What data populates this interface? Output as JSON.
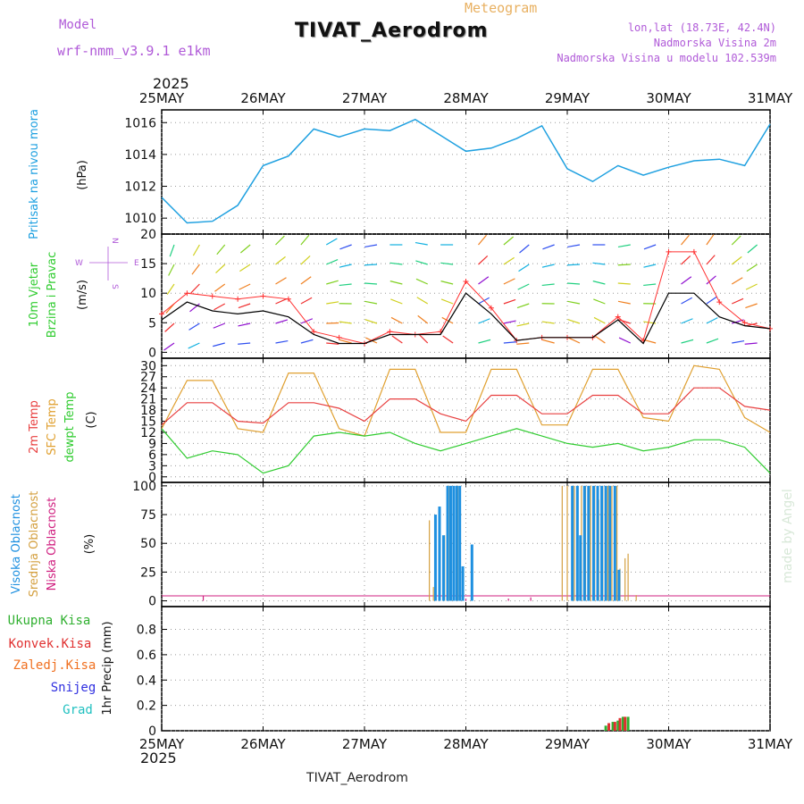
{
  "header": {
    "model_label": "Model",
    "model_name": "wrf-nmm_v3.9.1  e1km",
    "product": "Meteogram",
    "station": "TIVAT_Aerodrom",
    "location": "lon,lat (18.73E, 42.4N)",
    "elevation": "Nadmorska Visina 2m",
    "model_elevation": "Nadmorska Visina u modelu 102.539m",
    "footer_station": "TIVAT_Aerodrom",
    "credit": "made by Angel",
    "year_top": "2025",
    "year_bottom": "2025"
  },
  "colors": {
    "pressure": "#1ea0e0",
    "speed": "#000000",
    "gust": "#ff3030",
    "t2m": "#e84040",
    "sfc": "#e0a030",
    "dew": "#30cc30",
    "high_cloud": "#1e90e0",
    "mid_cloud": "#d4a040",
    "low_cloud": "#d02080",
    "total_precip": "#30b030",
    "conv_precip": "#e03030",
    "frozen": "#f07020",
    "snow": "#3030e0",
    "hail": "#20c0c0",
    "grid": "#999999"
  },
  "time_axis": {
    "ticks": [
      "25MAY",
      "26MAY",
      "27MAY",
      "28MAY",
      "29MAY",
      "30MAY",
      "31MAY"
    ]
  },
  "panels": {
    "pressure": {
      "label_main": "Pritisak na nivou mora",
      "unit": "(hPa)"
    },
    "wind": {
      "label_1": "10m Vjetar",
      "label_2": "Brzina i Pravac",
      "unit": "(m/s)",
      "compass_n": "N",
      "compass_w": "W",
      "compass_e": "E",
      "compass_s": "S"
    },
    "temp": {
      "label_1": "2m Temp",
      "label_2": "SFC Temp",
      "label_3": "dewpt Temp",
      "unit": "(C)"
    },
    "cloud": {
      "label_1": "Visoka Oblacnost",
      "label_2": "Srednja Oblacnost",
      "label_3": "Niska Oblacnost",
      "unit": "(%)"
    },
    "precip": {
      "label_1": "Ukupna Kisa",
      "label_2": "Konvek.Kisa",
      "label_3": "Zaledj.Kisa",
      "label_4": "Snijeg",
      "label_5": "Grad",
      "unit": "1hr Precip (mm)"
    }
  },
  "chart_data": [
    {
      "type": "line",
      "name": "pressure",
      "x_days": [
        0,
        0.25,
        0.5,
        0.75,
        1,
        1.25,
        1.5,
        1.75,
        2,
        2.25,
        2.5,
        2.75,
        3,
        3.25,
        3.5,
        3.75,
        4,
        4.25,
        4.5,
        4.75,
        5,
        5.25,
        5.5,
        5.75,
        6
      ],
      "series": [
        {
          "values": [
            1011.3,
            1009.7,
            1009.8,
            1010.8,
            1013.3,
            1013.9,
            1015.6,
            1015.1,
            1015.6,
            1015.5,
            1016.2,
            1015.2,
            1014.2,
            1014.4,
            1015.0,
            1015.8,
            1013.1,
            1012.3,
            1013.3,
            1012.7,
            1013.2,
            1013.6,
            1013.7,
            1013.3,
            1015.9
          ]
        }
      ],
      "ylabel": "(hPa)",
      "yticks": [
        1010,
        1012,
        1014,
        1016
      ],
      "ylim": [
        1009.0,
        1016.8
      ]
    },
    {
      "type": "line",
      "name": "wind10m",
      "x_days": [
        0,
        0.25,
        0.5,
        0.75,
        1,
        1.25,
        1.5,
        1.75,
        2,
        2.25,
        2.5,
        2.75,
        3,
        3.25,
        3.5,
        3.75,
        4,
        4.25,
        4.5,
        4.75,
        5,
        5.25,
        5.5,
        5.75,
        6
      ],
      "series": [
        {
          "values": [
            5.5,
            8.5,
            7.0,
            6.5,
            7.0,
            6.0,
            3.0,
            1.5,
            1.5,
            3.0,
            3.0,
            3.0,
            10.0,
            6.5,
            2.0,
            2.5,
            2.5,
            2.5,
            5.5,
            1.5,
            10.0,
            10.0,
            6.0,
            4.5,
            4.0
          ]
        },
        {
          "values": [
            6.5,
            10.0,
            9.5,
            9.0,
            9.5,
            9.0,
            3.5,
            2.5,
            1.5,
            3.5,
            3.0,
            3.5,
            12.0,
            7.5,
            2.0,
            2.5,
            2.5,
            2.5,
            6.0,
            2.0,
            17.0,
            17.0,
            8.5,
            5.0,
            4.0
          ]
        }
      ],
      "ylabel": "(m/s)",
      "yticks": [
        0,
        5,
        10,
        15,
        20
      ],
      "ylim": [
        -1,
        20
      ]
    },
    {
      "type": "line",
      "name": "temperature",
      "x_days": [
        0,
        0.25,
        0.5,
        0.75,
        1,
        1.25,
        1.5,
        1.75,
        2,
        2.25,
        2.5,
        2.75,
        3,
        3.25,
        3.5,
        3.75,
        4,
        4.25,
        4.5,
        4.75,
        5,
        5.25,
        5.5,
        5.75,
        6
      ],
      "series": [
        {
          "values": [
            14,
            20,
            20,
            15,
            14.5,
            20,
            20,
            18.5,
            15,
            21,
            21,
            17,
            15,
            22,
            22,
            17,
            17,
            22,
            22,
            17,
            17,
            24,
            24,
            19,
            18
          ]
        },
        {
          "values": [
            13,
            26,
            26,
            13,
            12,
            28,
            28,
            13,
            11,
            29,
            29,
            12,
            12,
            29,
            29,
            14,
            14,
            29,
            29,
            16,
            15,
            30,
            29,
            16,
            12
          ]
        },
        {
          "values": [
            13,
            5,
            7,
            6,
            1,
            3,
            11,
            12,
            11,
            12,
            9,
            7,
            9,
            11,
            13,
            11,
            9,
            8,
            9,
            7,
            8,
            10,
            10,
            8,
            1
          ]
        }
      ],
      "ylabel": "(C)",
      "yticks": [
        0,
        3,
        6,
        9,
        12,
        15,
        18,
        21,
        24,
        27,
        30
      ],
      "ylim": [
        -1.5,
        32
      ]
    },
    {
      "type": "bar",
      "name": "cloud",
      "series": [
        {
          "bars": [
            {
              "x": 2.7,
              "v": 75
            },
            {
              "x": 2.74,
              "v": 82
            },
            {
              "x": 2.78,
              "v": 57
            },
            {
              "x": 2.82,
              "v": 100
            },
            {
              "x": 2.85,
              "v": 100
            },
            {
              "x": 2.88,
              "v": 100
            },
            {
              "x": 2.91,
              "v": 100
            },
            {
              "x": 2.94,
              "v": 100
            },
            {
              "x": 2.97,
              "v": 30
            },
            {
              "x": 3.06,
              "v": 49
            },
            {
              "x": 4.05,
              "v": 100
            },
            {
              "x": 4.1,
              "v": 100
            },
            {
              "x": 4.13,
              "v": 57
            },
            {
              "x": 4.17,
              "v": 100
            },
            {
              "x": 4.21,
              "v": 100
            },
            {
              "x": 4.26,
              "v": 100
            },
            {
              "x": 4.3,
              "v": 100
            },
            {
              "x": 4.34,
              "v": 100
            },
            {
              "x": 4.38,
              "v": 100
            },
            {
              "x": 4.42,
              "v": 100
            },
            {
              "x": 4.47,
              "v": 100
            },
            {
              "x": 4.51,
              "v": 27
            }
          ]
        },
        {
          "bars": [
            {
              "x": 2.64,
              "v": 70
            },
            {
              "x": 2.68,
              "v": 12
            },
            {
              "x": 2.79,
              "v": 57
            },
            {
              "x": 2.83,
              "v": 100
            },
            {
              "x": 2.92,
              "v": 100
            },
            {
              "x": 3.95,
              "v": 100
            },
            {
              "x": 4.0,
              "v": 100
            },
            {
              "x": 4.07,
              "v": 100
            },
            {
              "x": 4.14,
              "v": 100
            },
            {
              "x": 4.18,
              "v": 100
            },
            {
              "x": 4.23,
              "v": 100
            },
            {
              "x": 4.27,
              "v": 100
            },
            {
              "x": 4.31,
              "v": 88
            },
            {
              "x": 4.35,
              "v": 100
            },
            {
              "x": 4.4,
              "v": 100
            },
            {
              "x": 4.44,
              "v": 100
            },
            {
              "x": 4.49,
              "v": 100
            },
            {
              "x": 4.52,
              "v": 28
            },
            {
              "x": 4.57,
              "v": 37
            },
            {
              "x": 4.6,
              "v": 41
            },
            {
              "x": 4.68,
              "v": 5
            }
          ]
        },
        {
          "bars": [
            {
              "x": 0.41,
              "v": 4
            },
            {
              "x": 3.0,
              "v": 2
            },
            {
              "x": 3.42,
              "v": 2
            },
            {
              "x": 3.64,
              "v": 3
            }
          ]
        }
      ],
      "ylabel": "(%)",
      "yticks": [
        0,
        25,
        50,
        75,
        100
      ],
      "ylim": [
        -5,
        103
      ]
    },
    {
      "type": "bar",
      "name": "precip",
      "series": [
        {
          "bars": [
            {
              "x": 4.38,
              "v": 0.04
            },
            {
              "x": 4.45,
              "v": 0.07
            },
            {
              "x": 4.5,
              "v": 0.08
            },
            {
              "x": 4.55,
              "v": 0.11
            },
            {
              "x": 4.6,
              "v": 0.11
            }
          ]
        },
        {
          "bars": [
            {
              "x": 4.41,
              "v": 0.06
            },
            {
              "x": 4.47,
              "v": 0.07
            },
            {
              "x": 4.52,
              "v": 0.1
            },
            {
              "x": 4.57,
              "v": 0.11
            }
          ]
        }
      ],
      "ylabel": "1hr Precip (mm)",
      "yticks": [
        0,
        0.2,
        0.4,
        0.6,
        0.8
      ],
      "ylim": [
        0,
        0.98
      ]
    }
  ]
}
